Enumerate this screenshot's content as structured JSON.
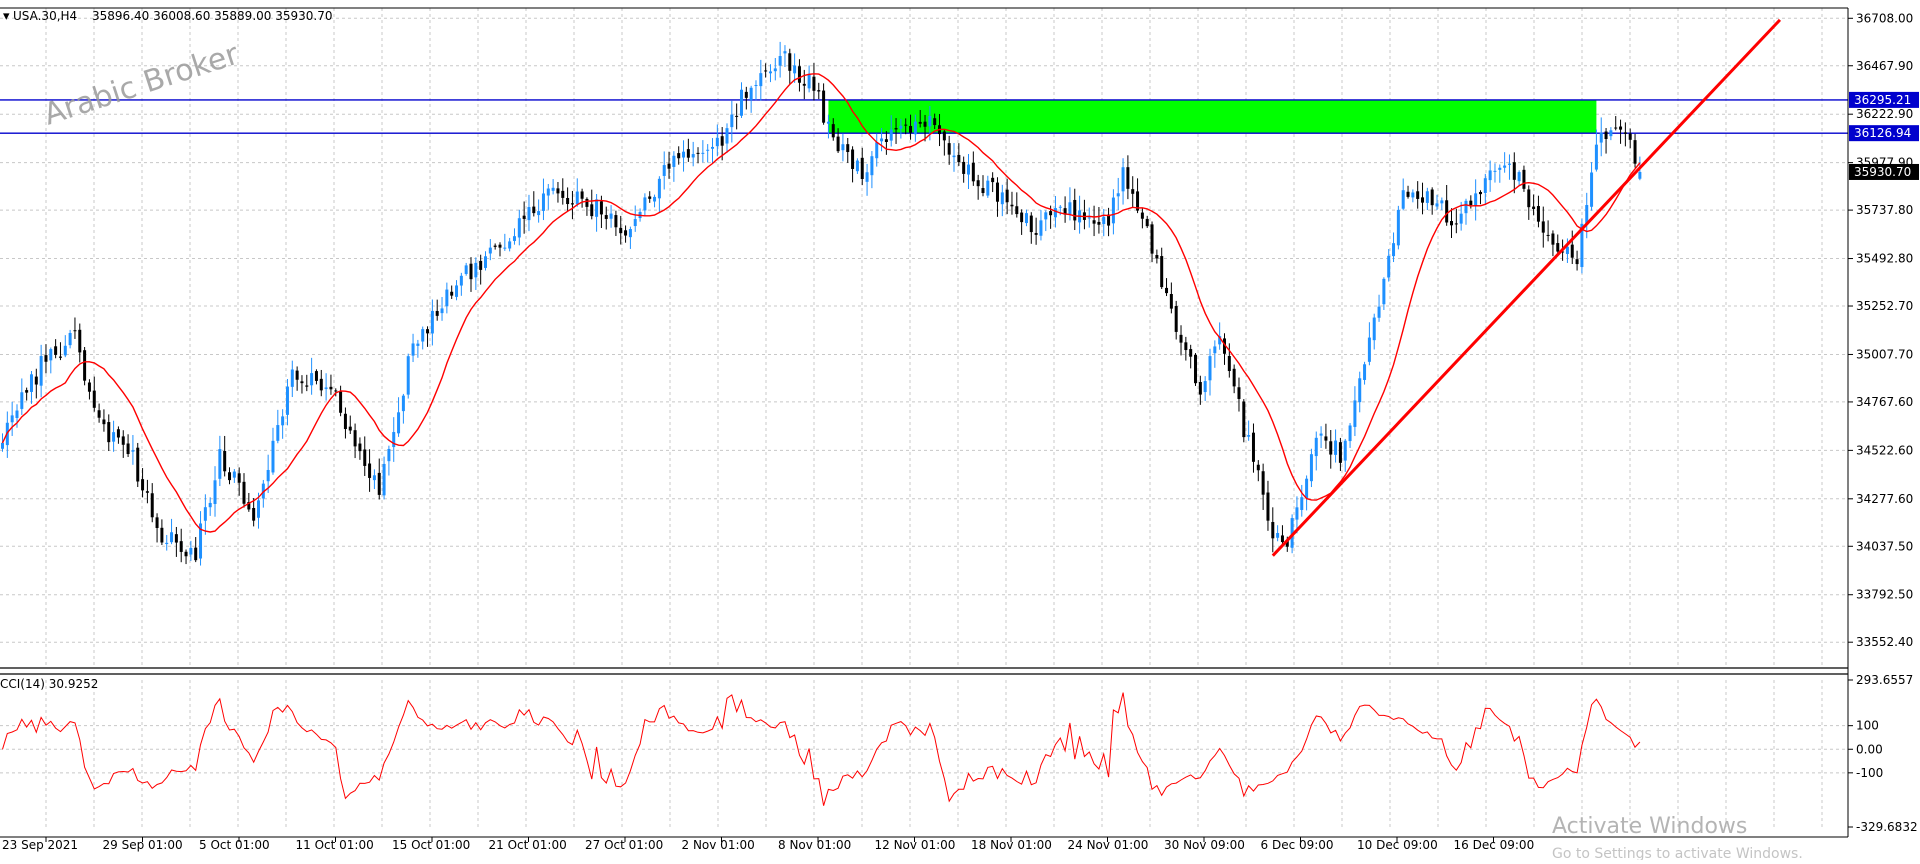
{
  "header": {
    "symbol_label": "USA.30,H4",
    "ohlc_label": "35896.40 36008.60 35889.00 35930.70"
  },
  "watermark": {
    "text": "Arabic Broker"
  },
  "indicator": {
    "label": "CCI(14) 30.9252"
  },
  "colors": {
    "up_candle": "#1e90ff",
    "down_candle": "#000000",
    "moving_average": "#ff0000",
    "zone_fill": "#00ff00",
    "level_line": "#0000cd",
    "trendline": "#ff0000",
    "cci_line": "#ff0000",
    "grid": "#c8c8c8"
  },
  "os_watermark": {
    "line1": "Activate Windows",
    "line2": "Go to Settings to activate Windows."
  },
  "chart_data": [
    {
      "type": "candlestick",
      "symbol": "USA.30",
      "timeframe": "H4",
      "last_bar": {
        "open": 35896.4,
        "high": 36008.6,
        "low": 35889.0,
        "close": 35930.7
      },
      "current_price": 35930.7,
      "price_labels": {
        "current": "35930.70",
        "level_upper": "36295.21",
        "level_lower": "36126.94"
      },
      "ylim": [
        33432,
        36760
      ],
      "y_ticks": [
        36708.0,
        36467.9,
        36222.9,
        35977.9,
        35737.8,
        35492.8,
        35252.7,
        35007.7,
        34767.6,
        34522.6,
        34277.6,
        34037.5,
        33792.5,
        33552.4
      ],
      "x_ticks": [
        "23 Sep 2021",
        "29 Sep 01:00",
        "5 Oct 01:00",
        "11 Oct 01:00",
        "15 Oct 01:00",
        "21 Oct 01:00",
        "27 Oct 01:00",
        "2 Nov 01:00",
        "8 Nov 01:00",
        "12 Nov 01:00",
        "18 Nov 01:00",
        "24 Nov 01:00",
        "30 Nov 09:00",
        "6 Dec 09:00",
        "10 Dec 09:00",
        "16 Dec 09:00"
      ],
      "anchors": [
        [
          0,
          34600
        ],
        [
          8,
          34950
        ],
        [
          15,
          35100
        ],
        [
          20,
          34650
        ],
        [
          27,
          34500
        ],
        [
          32,
          34100
        ],
        [
          40,
          34000
        ],
        [
          45,
          34500
        ],
        [
          52,
          34200
        ],
        [
          60,
          34900
        ],
        [
          68,
          34850
        ],
        [
          72,
          34600
        ],
        [
          78,
          34350
        ],
        [
          85,
          35050
        ],
        [
          95,
          35400
        ],
        [
          105,
          35600
        ],
        [
          115,
          35850
        ],
        [
          122,
          35750
        ],
        [
          130,
          35650
        ],
        [
          138,
          35950
        ],
        [
          148,
          36050
        ],
        [
          155,
          36400
        ],
        [
          162,
          36500
        ],
        [
          168,
          36350
        ],
        [
          172,
          36100
        ],
        [
          178,
          35950
        ],
        [
          185,
          36150
        ],
        [
          192,
          36200
        ],
        [
          198,
          35950
        ],
        [
          205,
          35850
        ],
        [
          213,
          35650
        ],
        [
          220,
          35750
        ],
        [
          228,
          35650
        ],
        [
          232,
          35900
        ],
        [
          236,
          35700
        ],
        [
          242,
          35200
        ],
        [
          248,
          34850
        ],
        [
          252,
          35100
        ],
        [
          258,
          34550
        ],
        [
          263,
          34100
        ],
        [
          266,
          34050
        ],
        [
          272,
          34600
        ],
        [
          277,
          34500
        ],
        [
          283,
          35050
        ],
        [
          290,
          35800
        ],
        [
          295,
          35800
        ],
        [
          300,
          35700
        ],
        [
          305,
          35800
        ],
        [
          312,
          36000
        ],
        [
          317,
          35700
        ],
        [
          322,
          35550
        ],
        [
          326,
          35500
        ],
        [
          331,
          36150
        ],
        [
          336,
          36100
        ],
        [
          339,
          35930
        ]
      ],
      "zone": {
        "price_top": 36295.21,
        "price_bottom": 36126.94,
        "bar_start": 171,
        "bar_end": 330
      },
      "levels": [
        36295.21,
        36126.94
      ],
      "trendline": {
        "start": {
          "bar": 263,
          "price": 33990
        },
        "end": {
          "bar": 368,
          "price": 36700
        }
      },
      "moving_average_period": 14
    },
    {
      "type": "line",
      "name": "CCI(14)",
      "value": 30.9252,
      "ylim": [
        -329.6832,
        293.6557
      ],
      "y_tick_labels": [
        "293.6557",
        "100",
        "0.00",
        "-100",
        "-329.6832"
      ],
      "y_ticks": [
        293.6557,
        100,
        0,
        -100,
        -329.6832
      ],
      "last_value": 30.9252
    }
  ]
}
